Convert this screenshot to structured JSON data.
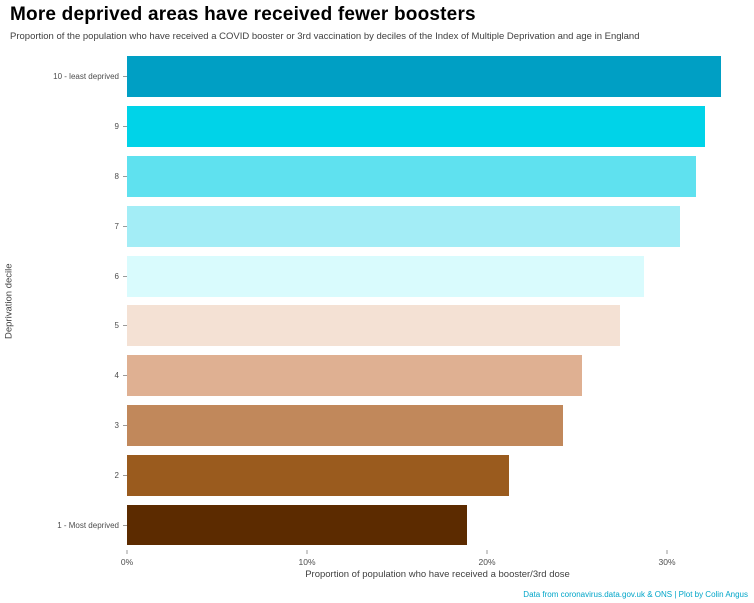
{
  "header": {
    "title": "More deprived areas have received fewer boosters",
    "subtitle": "Proportion of the population who have received a COVID booster or 3rd vaccination by deciles of the Index of Multiple Deprivation and age in England"
  },
  "chart_data": {
    "type": "bar",
    "orientation": "horizontal",
    "title": "More deprived areas have received fewer boosters",
    "subtitle": "Proportion of the population who have received a COVID booster or 3rd vaccination by deciles of the Index of Multiple Deprivation and age in England",
    "categories": [
      "10 - least deprived",
      "9",
      "8",
      "7",
      "6",
      "5",
      "4",
      "3",
      "2",
      "1 - Most deprived"
    ],
    "values": [
      33.0,
      32.1,
      31.6,
      30.7,
      28.7,
      27.4,
      25.3,
      24.2,
      21.2,
      18.9
    ],
    "bar_colors": [
      "#009fc4",
      "#00d3e8",
      "#5fe1ef",
      "#a3edf6",
      "#d9fbfd",
      "#f4e1d4",
      "#dfb092",
      "#c1885b",
      "#9a5b1e",
      "#5c2b00"
    ],
    "xlabel": "Proportion of population who have received a booster/3rd dose",
    "ylabel": "Deprivation decile",
    "x_ticks": [
      0,
      10,
      20,
      30
    ],
    "x_tick_labels": [
      "0%",
      "10%",
      "20%",
      "30%"
    ],
    "xlim": [
      0,
      34.5
    ],
    "grid": false,
    "legend": "none"
  },
  "footer": {
    "caption": "Data from coronavirus.data.gov.uk & ONS | Plot by Colin Angus",
    "caption_color": "#00a5c8"
  }
}
